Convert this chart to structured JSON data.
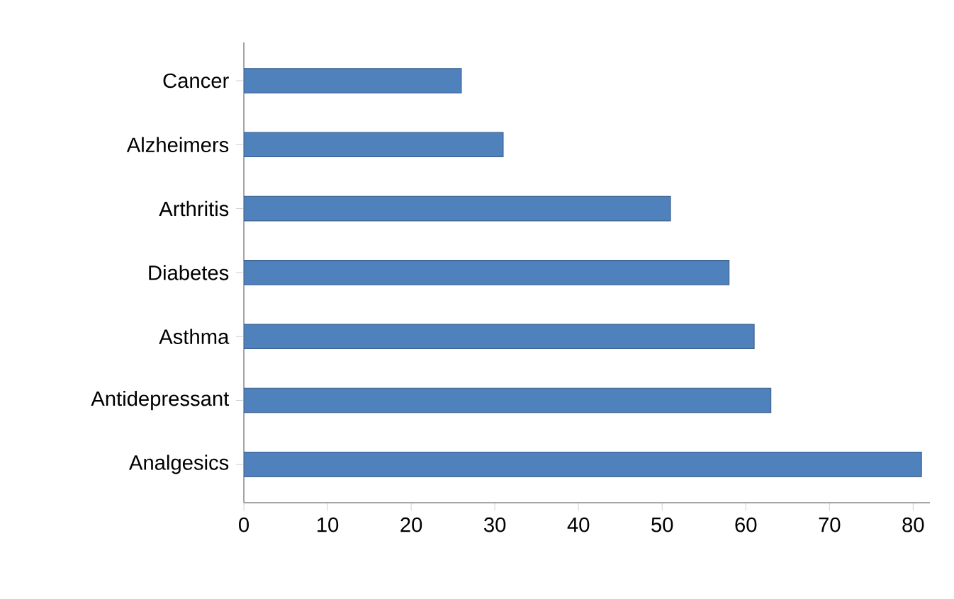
{
  "chart_data": {
    "type": "bar",
    "orientation": "horizontal",
    "categories": [
      "Cancer",
      "Alzheimers",
      "Arthritis",
      "Diabetes",
      "Asthma",
      "Antidepressant",
      "Analgesics"
    ],
    "values": [
      26,
      31,
      51,
      58,
      61,
      63,
      81
    ],
    "color": "#4f81bd",
    "xlim": [
      0,
      82
    ],
    "xticks": [
      0,
      10,
      20,
      30,
      40,
      50,
      60,
      70,
      80
    ],
    "grid": false
  }
}
